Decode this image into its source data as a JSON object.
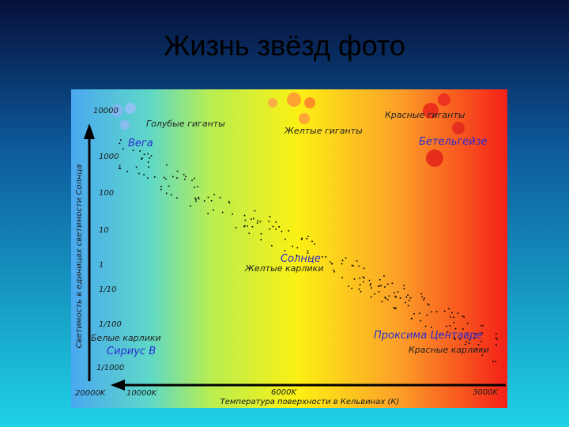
{
  "title": "Жизнь звёзд фото",
  "diagram": {
    "y_axis_label": "Светимость в единицах светимости Солнца",
    "x_axis_label": "Температура поверхности в Кельвинах (К)",
    "y_ticks": [
      "10000",
      "1000",
      "100",
      "10",
      "1",
      "1/10",
      "1/100",
      "1/1000"
    ],
    "x_ticks": [
      "20000K",
      "10000K",
      "6000K",
      "3000K"
    ],
    "labels": [
      "Голубые гиганты",
      "Вега",
      "Желтые гиганты",
      "Красные гиганты",
      "Бетельгейзе",
      "Солнце",
      "Желтые карлики",
      "Белые карлики",
      "Сириус В",
      "Проксима Центавре",
      "Красные карлики"
    ]
  }
}
